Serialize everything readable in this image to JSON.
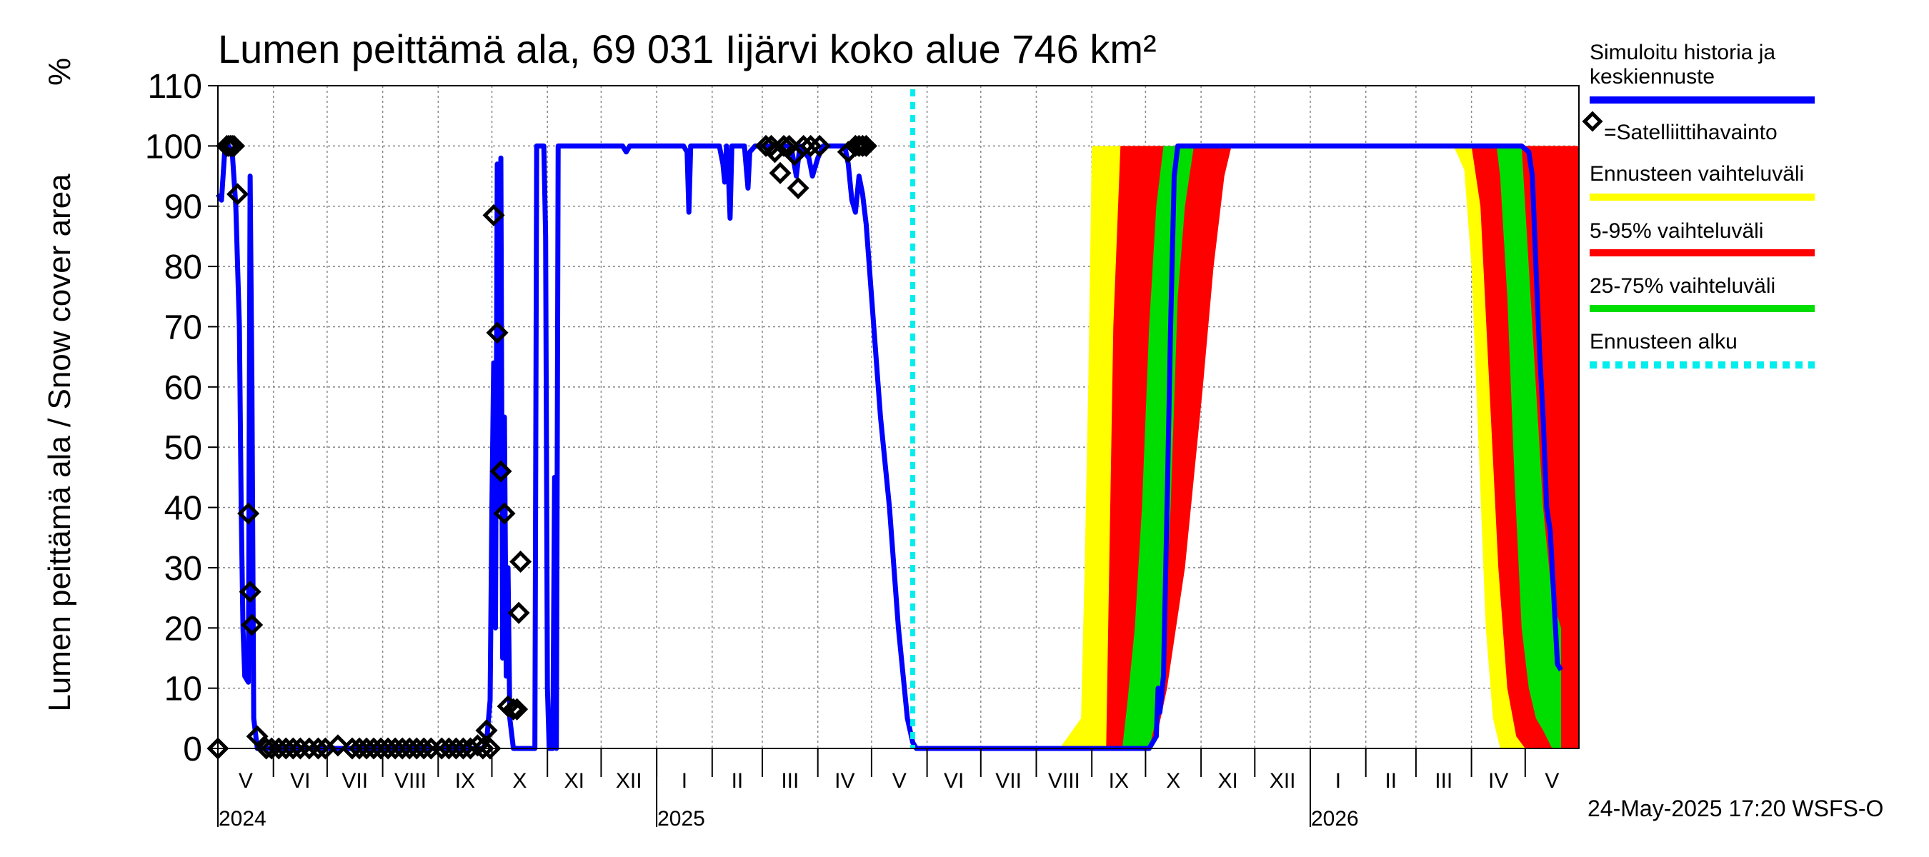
{
  "chart_data": {
    "type": "area",
    "title": "Lumen peittämä ala, 69 031 Iijärvi koko alue 746 km²",
    "ylabel": "Lumen peittämä ala / Snow cover area",
    "yunit": "%",
    "ylim": [
      0,
      110
    ],
    "yticks": [
      0,
      10,
      20,
      30,
      40,
      50,
      60,
      70,
      80,
      90,
      100,
      110
    ],
    "xlim": [
      0,
      760
    ],
    "months": [
      {
        "label": "V",
        "start": 0
      },
      {
        "label": "VI",
        "start": 31
      },
      {
        "label": "VII",
        "start": 61
      },
      {
        "label": "VIII",
        "start": 92
      },
      {
        "label": "IX",
        "start": 123
      },
      {
        "label": "X",
        "start": 153
      },
      {
        "label": "XI",
        "start": 184
      },
      {
        "label": "XII",
        "start": 214
      },
      {
        "label": "I",
        "start": 245
      },
      {
        "label": "II",
        "start": 276
      },
      {
        "label": "III",
        "start": 304
      },
      {
        "label": "IV",
        "start": 335
      },
      {
        "label": "V",
        "start": 365
      },
      {
        "label": "VI",
        "start": 396
      },
      {
        "label": "VII",
        "start": 426
      },
      {
        "label": "VIII",
        "start": 457
      },
      {
        "label": "IX",
        "start": 488
      },
      {
        "label": "X",
        "start": 518
      },
      {
        "label": "XI",
        "start": 549
      },
      {
        "label": "XII",
        "start": 579
      },
      {
        "label": "I",
        "start": 610
      },
      {
        "label": "II",
        "start": 641
      },
      {
        "label": "III",
        "start": 669
      },
      {
        "label": "IV",
        "start": 700
      },
      {
        "label": "V",
        "start": 730
      }
    ],
    "years": [
      {
        "label": "2024",
        "day": 0
      },
      {
        "label": "2025",
        "day": 245
      },
      {
        "label": "2026",
        "day": 610
      }
    ],
    "forecast_start_day": 388,
    "series": [
      {
        "name": "Simuloitu historia ja keskiennuste",
        "color": "#0000ff",
        "points": [
          [
            0,
            92
          ],
          [
            2,
            91
          ],
          [
            4,
            100
          ],
          [
            6,
            100
          ],
          [
            8,
            99
          ],
          [
            10,
            90
          ],
          [
            12,
            70
          ],
          [
            13,
            40
          ],
          [
            14,
            20
          ],
          [
            15,
            12
          ],
          [
            17,
            11
          ],
          [
            18,
            95
          ],
          [
            19,
            60
          ],
          [
            20,
            5
          ],
          [
            22,
            0
          ],
          [
            30,
            0
          ],
          [
            60,
            0
          ],
          [
            90,
            0
          ],
          [
            120,
            0
          ],
          [
            140,
            0
          ],
          [
            148,
            0
          ],
          [
            150,
            1
          ],
          [
            152,
            8
          ],
          [
            153,
            40
          ],
          [
            154,
            64
          ],
          [
            155,
            20
          ],
          [
            156,
            97
          ],
          [
            157,
            40
          ],
          [
            158,
            98
          ],
          [
            159,
            15
          ],
          [
            160,
            55
          ],
          [
            161,
            12
          ],
          [
            162,
            30
          ],
          [
            163,
            5
          ],
          [
            165,
            0
          ],
          [
            170,
            0
          ],
          [
            175,
            0
          ],
          [
            177,
            0
          ],
          [
            178,
            100
          ],
          [
            182,
            100
          ],
          [
            183,
            85
          ],
          [
            184,
            10
          ],
          [
            185,
            0
          ],
          [
            187,
            0
          ],
          [
            188,
            45
          ],
          [
            189,
            0
          ],
          [
            190,
            100
          ],
          [
            192,
            100
          ],
          [
            195,
            100
          ],
          [
            200,
            100
          ],
          [
            220,
            100
          ],
          [
            226,
            100
          ],
          [
            228,
            99
          ],
          [
            230,
            100
          ],
          [
            260,
            100
          ],
          [
            262,
            99
          ],
          [
            263,
            89
          ],
          [
            264,
            100
          ],
          [
            280,
            100
          ],
          [
            282,
            97
          ],
          [
            283,
            94
          ],
          [
            284,
            100
          ],
          [
            285,
            96
          ],
          [
            286,
            88
          ],
          [
            287,
            100
          ],
          [
            294,
            100
          ],
          [
            296,
            93
          ],
          [
            297,
            99
          ],
          [
            300,
            100
          ],
          [
            320,
            100
          ],
          [
            323,
            95
          ],
          [
            325,
            100
          ],
          [
            330,
            98
          ],
          [
            332,
            95
          ],
          [
            335,
            98
          ],
          [
            338,
            100
          ],
          [
            350,
            100
          ],
          [
            352,
            97
          ],
          [
            354,
            91
          ],
          [
            356,
            89
          ],
          [
            358,
            95
          ],
          [
            360,
            92
          ],
          [
            362,
            87
          ],
          [
            365,
            75
          ],
          [
            370,
            55
          ],
          [
            375,
            40
          ],
          [
            380,
            20
          ],
          [
            385,
            5
          ],
          [
            388,
            1
          ],
          [
            390,
            0
          ],
          [
            420,
            0
          ],
          [
            480,
            0
          ],
          [
            500,
            0
          ],
          [
            520,
            0
          ],
          [
            524,
            2
          ],
          [
            525,
            10
          ],
          [
            526,
            6
          ],
          [
            528,
            12
          ],
          [
            530,
            40
          ],
          [
            532,
            70
          ],
          [
            534,
            95
          ],
          [
            536,
            100
          ],
          [
            560,
            100
          ],
          [
            600,
            100
          ],
          [
            650,
            100
          ],
          [
            700,
            100
          ],
          [
            728,
            100
          ],
          [
            732,
            99
          ],
          [
            734,
            95
          ],
          [
            736,
            80
          ],
          [
            738,
            66
          ],
          [
            740,
            55
          ],
          [
            742,
            40
          ],
          [
            744,
            36
          ],
          [
            746,
            25
          ],
          [
            748,
            14
          ],
          [
            750,
            13
          ]
        ]
      },
      {
        "name": "Ennusteen vaihteluväli",
        "color": "#ffff00",
        "band": [
          [
            470,
            0,
            0
          ],
          [
            482,
            0,
            5
          ],
          [
            484,
            0,
            30
          ],
          [
            486,
            0,
            60
          ],
          [
            488,
            0,
            100
          ],
          [
            500,
            0,
            100
          ],
          [
            512,
            0,
            100
          ],
          [
            518,
            3,
            100
          ],
          [
            525,
            8,
            100
          ],
          [
            530,
            20,
            100
          ],
          [
            535,
            40,
            100
          ],
          [
            540,
            70,
            100
          ],
          [
            548,
            90,
            100
          ],
          [
            556,
            96,
            100
          ],
          [
            565,
            100,
            100
          ],
          [
            690,
            100,
            100
          ],
          [
            696,
            96,
            100
          ],
          [
            700,
            80,
            100
          ],
          [
            704,
            50,
            100
          ],
          [
            708,
            20,
            100
          ],
          [
            712,
            5,
            100
          ],
          [
            716,
            0,
            100
          ],
          [
            740,
            0,
            100
          ],
          [
            760,
            0,
            100
          ]
        ]
      },
      {
        "name": "5-95% vaihteluväli",
        "color": "#ff0000",
        "band": [
          [
            496,
            0,
            0
          ],
          [
            500,
            0,
            70
          ],
          [
            504,
            0,
            100
          ],
          [
            518,
            0,
            100
          ],
          [
            525,
            3,
            100
          ],
          [
            530,
            10,
            100
          ],
          [
            540,
            30,
            100
          ],
          [
            550,
            60,
            100
          ],
          [
            556,
            80,
            100
          ],
          [
            562,
            95,
            100
          ],
          [
            566,
            100,
            100
          ],
          [
            700,
            100,
            100
          ],
          [
            705,
            90,
            100
          ],
          [
            710,
            60,
            100
          ],
          [
            715,
            30,
            100
          ],
          [
            720,
            10,
            100
          ],
          [
            725,
            2,
            100
          ],
          [
            730,
            0,
            100
          ],
          [
            760,
            0,
            100
          ]
        ]
      },
      {
        "name": "25-75% vaihteluväli",
        "color": "#00dd00",
        "band": [
          [
            505,
            0,
            0
          ],
          [
            508,
            0,
            8
          ],
          [
            512,
            0,
            20
          ],
          [
            516,
            0,
            40
          ],
          [
            520,
            0,
            70
          ],
          [
            524,
            5,
            90
          ],
          [
            528,
            15,
            100
          ],
          [
            532,
            40,
            100
          ],
          [
            536,
            75,
            100
          ],
          [
            540,
            90,
            100
          ],
          [
            545,
            100,
            100
          ],
          [
            714,
            100,
            100
          ],
          [
            716,
            95,
            100
          ],
          [
            720,
            75,
            100
          ],
          [
            724,
            45,
            100
          ],
          [
            728,
            20,
            100
          ],
          [
            732,
            10,
            80
          ],
          [
            736,
            5,
            60
          ],
          [
            740,
            3,
            40
          ],
          [
            745,
            0,
            25
          ],
          [
            750,
            0,
            20
          ]
        ]
      }
    ],
    "observations": [
      [
        0,
        0
      ],
      [
        5,
        100
      ],
      [
        6,
        100
      ],
      [
        7,
        100
      ],
      [
        8,
        100
      ],
      [
        9,
        100
      ],
      [
        11,
        92
      ],
      [
        17,
        39
      ],
      [
        18,
        26
      ],
      [
        19,
        20.5
      ],
      [
        22,
        2
      ],
      [
        27,
        0
      ],
      [
        30,
        0
      ],
      [
        34,
        0
      ],
      [
        38,
        0
      ],
      [
        42,
        0
      ],
      [
        46,
        0
      ],
      [
        51,
        0
      ],
      [
        56,
        0
      ],
      [
        60,
        0
      ],
      [
        67,
        0.5
      ],
      [
        75,
        0
      ],
      [
        79,
        0
      ],
      [
        83,
        0
      ],
      [
        87,
        0
      ],
      [
        91,
        0
      ],
      [
        95,
        0
      ],
      [
        99,
        0
      ],
      [
        103,
        0
      ],
      [
        107,
        0
      ],
      [
        111,
        0
      ],
      [
        115,
        0
      ],
      [
        119,
        0
      ],
      [
        125,
        0
      ],
      [
        129,
        0
      ],
      [
        133,
        0
      ],
      [
        137,
        0
      ],
      [
        141,
        0
      ],
      [
        145,
        0.5
      ],
      [
        148,
        0
      ],
      [
        150,
        3
      ],
      [
        152,
        0
      ],
      [
        154,
        88.5
      ],
      [
        156,
        69
      ],
      [
        158,
        46
      ],
      [
        160,
        39
      ],
      [
        162,
        7
      ],
      [
        165,
        6.5
      ],
      [
        167,
        6.5
      ],
      [
        169,
        31
      ],
      [
        168,
        22.5
      ],
      [
        306,
        100
      ],
      [
        309,
        100
      ],
      [
        311,
        99
      ],
      [
        314,
        95.5
      ],
      [
        316,
        100
      ],
      [
        319,
        100
      ],
      [
        322,
        98.5
      ],
      [
        324,
        93
      ],
      [
        327,
        100
      ],
      [
        331,
        100
      ],
      [
        336,
        100
      ],
      [
        352,
        99
      ],
      [
        356,
        100
      ],
      [
        358,
        100
      ],
      [
        360,
        100
      ],
      [
        362,
        100
      ]
    ],
    "legend": [
      {
        "label": "Simuloitu historia ja keskiennuste",
        "color": "#0000ff",
        "style": "line"
      },
      {
        "label": "=Satelliittihavainto",
        "color": "#000000",
        "style": "diamond"
      },
      {
        "label": "Ennusteen vaihteluväli",
        "color": "#ffff00",
        "style": "line"
      },
      {
        "label": "5-95% vaihteluväli",
        "color": "#ff0000",
        "style": "line"
      },
      {
        "label": "25-75% vaihteluväli",
        "color": "#00dd00",
        "style": "line"
      },
      {
        "label": "Ennusteen alku",
        "color": "#00eeee",
        "style": "dashed"
      }
    ],
    "footer": "24-May-2025 17:20 WSFS-O"
  }
}
